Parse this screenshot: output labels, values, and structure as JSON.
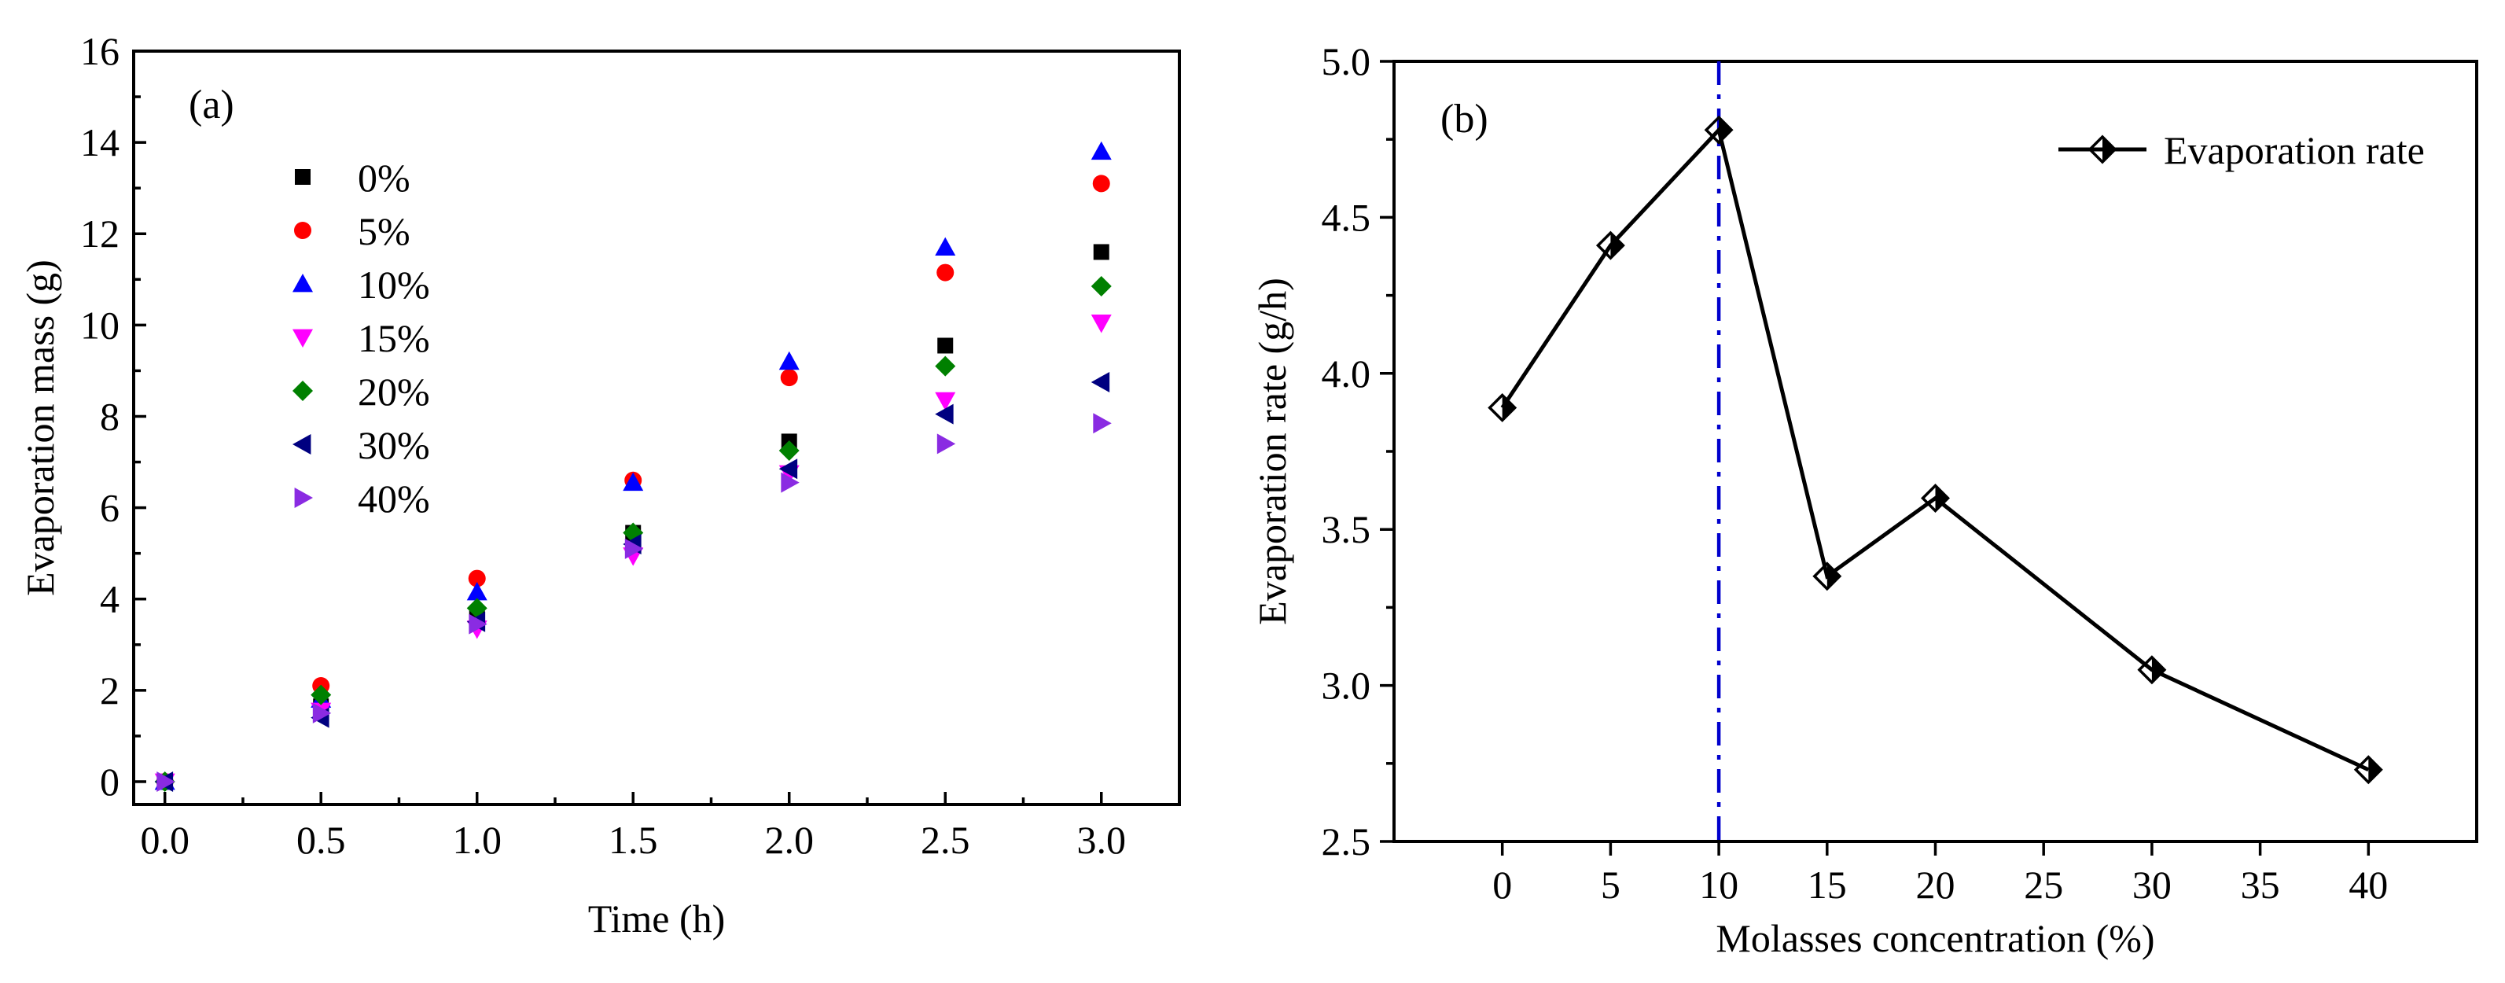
{
  "chart_data": [
    {
      "type": "scatter",
      "panel_label": "(a)",
      "xlabel": "Time (h)",
      "ylabel": "Evaporation mass (g)",
      "xlim": [
        -0.1,
        3.25
      ],
      "ylim": [
        -0.5,
        16
      ],
      "x_ticks": [
        "0.0",
        "0.5",
        "1.0",
        "1.5",
        "2.0",
        "2.5",
        "3.0"
      ],
      "y_ticks": [
        "0",
        "2",
        "4",
        "6",
        "8",
        "10",
        "12",
        "14",
        "16"
      ],
      "legend_position": "top-left",
      "x": [
        0,
        0.5,
        1.0,
        1.5,
        2.0,
        2.5,
        3.0
      ],
      "series": [
        {
          "name": "0%",
          "marker": "square",
          "color": "#000000",
          "values": [
            0,
            1.65,
            3.65,
            5.45,
            7.45,
            9.55,
            11.6
          ]
        },
        {
          "name": "5%",
          "marker": "circle",
          "color": "#ff0000",
          "values": [
            0,
            2.1,
            4.45,
            6.6,
            8.85,
            11.15,
            13.1
          ]
        },
        {
          "name": "10%",
          "marker": "triangle-up",
          "color": "#0000ff",
          "values": [
            0,
            1.8,
            4.15,
            6.55,
            9.2,
            11.7,
            13.8
          ]
        },
        {
          "name": "15%",
          "marker": "triangle-down",
          "color": "#ff00ff",
          "values": [
            0,
            1.55,
            3.35,
            4.95,
            6.75,
            8.35,
            10.05
          ]
        },
        {
          "name": "20%",
          "marker": "diamond",
          "color": "#008000",
          "values": [
            0,
            1.9,
            3.8,
            5.45,
            7.25,
            9.1,
            10.85
          ]
        },
        {
          "name": "30%",
          "marker": "triangle-left",
          "color": "#000080",
          "values": [
            0,
            1.4,
            3.5,
            5.2,
            6.85,
            8.05,
            8.75
          ]
        },
        {
          "name": "40%",
          "marker": "triangle-right",
          "color": "#8a2be2",
          "values": [
            0,
            1.5,
            3.45,
            5.1,
            6.55,
            7.4,
            7.85
          ]
        }
      ]
    },
    {
      "type": "line",
      "panel_label": "(b)",
      "xlabel": "Molasses concentration (%)",
      "ylabel": "Evaporation rate (g/h)",
      "xlim": [
        -5,
        45
      ],
      "ylim": [
        2.5,
        5.0
      ],
      "x_ticks": [
        "0",
        "5",
        "10",
        "15",
        "20",
        "25",
        "30",
        "35",
        "40"
      ],
      "y_ticks": [
        "2.5",
        "3.0",
        "3.5",
        "4.0",
        "4.5",
        "5.0"
      ],
      "legend_position": "top-right",
      "reference_line_x": 10,
      "reference_line_color": "#0000cd",
      "series": [
        {
          "name": "Evaporation rate",
          "marker": "half-filled-diamond",
          "color": "#000000",
          "x": [
            0,
            5,
            10,
            15,
            20,
            30,
            40
          ],
          "values": [
            3.89,
            4.41,
            4.78,
            3.35,
            3.6,
            3.05,
            2.73
          ]
        }
      ]
    }
  ]
}
